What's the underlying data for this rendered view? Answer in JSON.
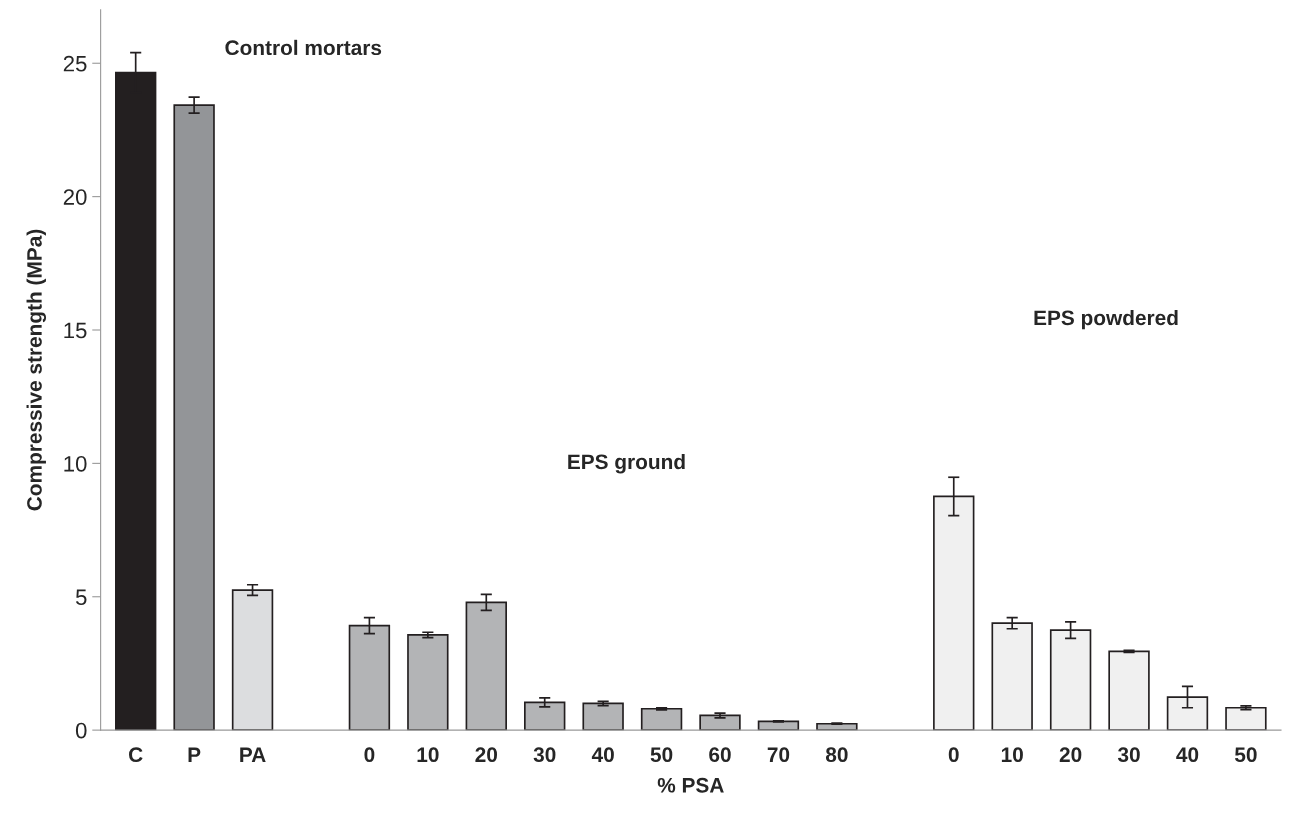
{
  "chart_data": {
    "type": "bar",
    "ylabel": "Compressive strength (MPa)",
    "xlabel": "% PSA",
    "categories": [
      "C",
      "P",
      "PA",
      null,
      "0",
      "10",
      "20",
      "30",
      "40",
      "50",
      "60",
      "70",
      "80",
      null,
      "0",
      "10",
      "20",
      "30",
      "40",
      "50"
    ],
    "values": [
      24.65,
      23.43,
      5.25,
      null,
      3.92,
      3.57,
      4.79,
      1.04,
      1.0,
      0.8,
      0.55,
      0.33,
      0.24,
      null,
      8.76,
      4.01,
      3.75,
      2.95,
      1.24,
      0.84
    ],
    "errors": [
      0.75,
      0.3,
      0.2,
      null,
      0.3,
      0.1,
      0.3,
      0.17,
      0.08,
      0.04,
      0.09,
      0.02,
      0.02,
      null,
      0.72,
      0.21,
      0.31,
      0.04,
      0.4,
      0.07
    ],
    "colors": [
      "#231f20",
      "#939598",
      "#dcdddf",
      "#ffffff",
      "#b3b4b6",
      "#b3b4b6",
      "#b3b4b6",
      "#b3b4b6",
      "#b3b4b6",
      "#b3b4b6",
      "#b3b4b6",
      "#b3b4b6",
      "#b3b4b6",
      "#ffffff",
      "#f0f0f0",
      "#f0f0f0",
      "#f0f0f0",
      "#f0f0f0",
      "#f0f0f0",
      "#f0f0f0"
    ],
    "annotations": [
      "Control mortars",
      "EPS ground",
      "EPS powdered"
    ],
    "ylim": [
      0,
      27
    ],
    "yticks": [
      0,
      5,
      10,
      15,
      20,
      25
    ],
    "grid": false,
    "legend": false
  }
}
